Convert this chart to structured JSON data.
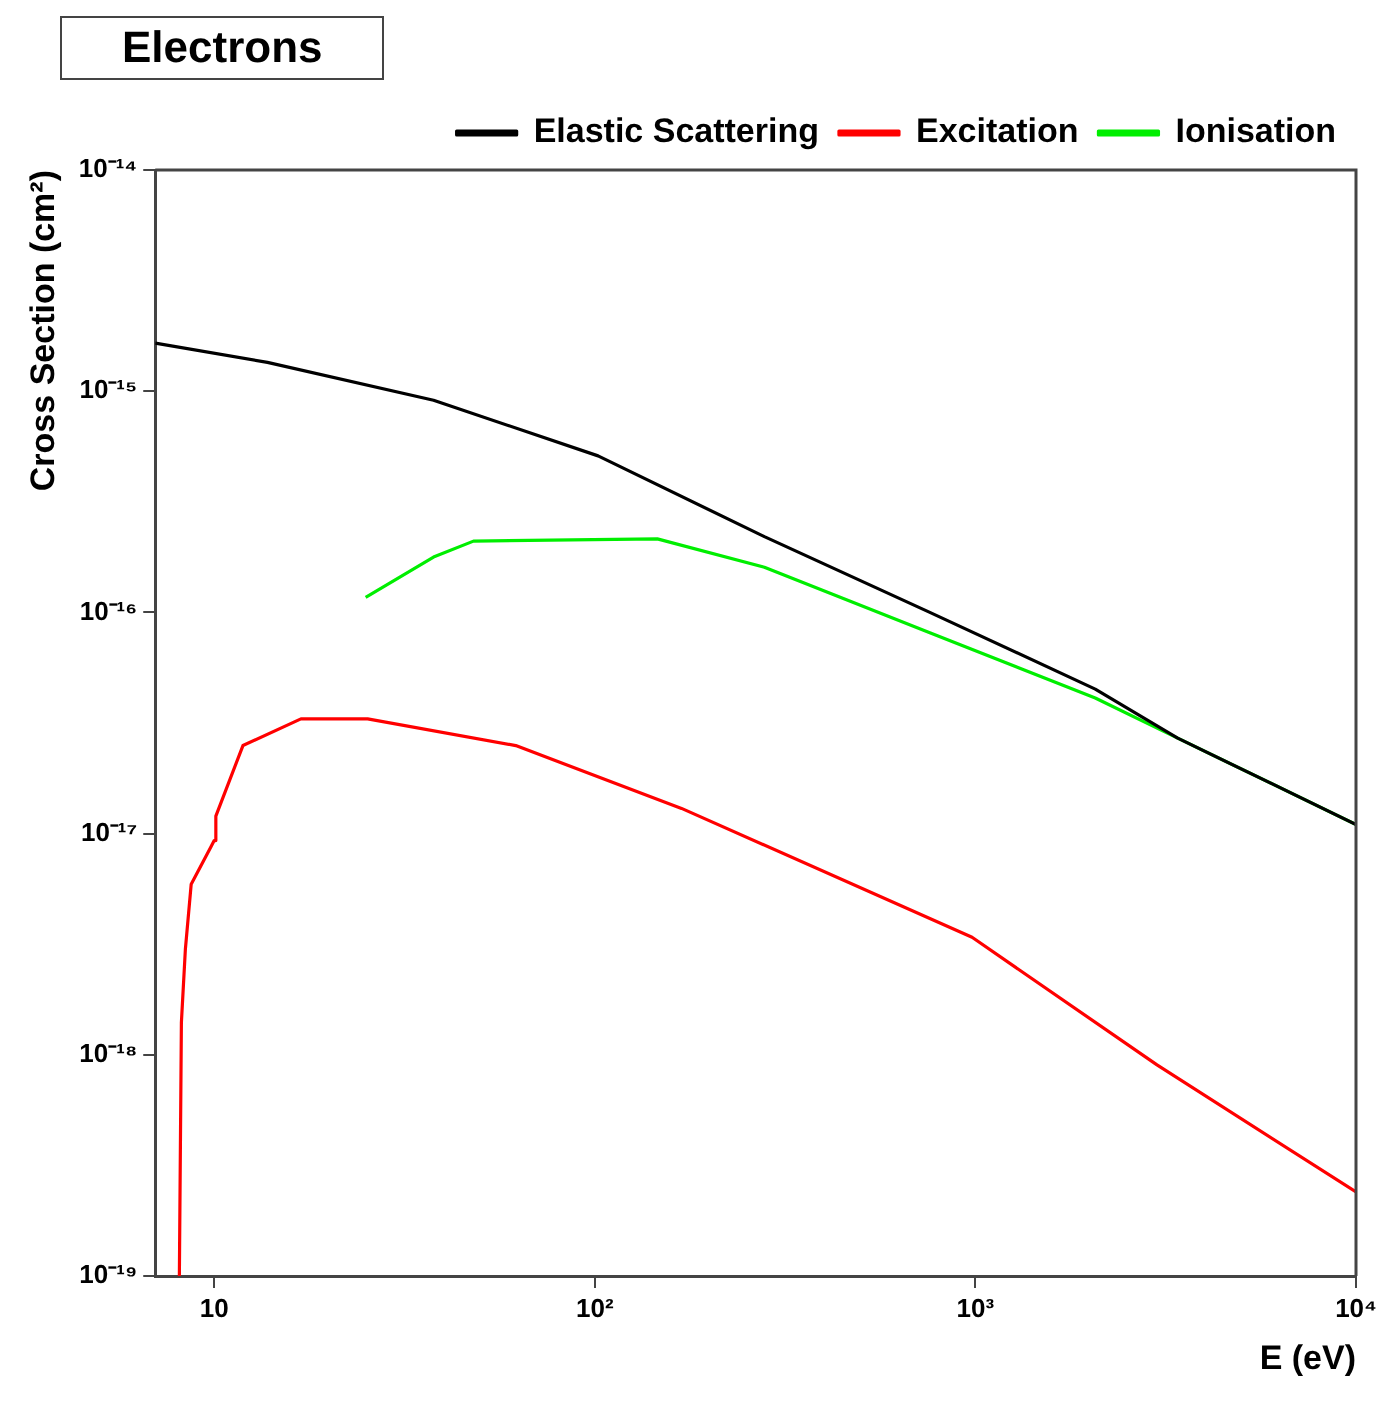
{
  "chart_data": {
    "type": "line",
    "title": "Electrons",
    "xlabel": "E (eV)",
    "ylabel": "Cross Section (cm²)",
    "log": "xy",
    "grid": false,
    "legend": "top right",
    "marker": "none",
    "line_style": "solid",
    "xlim": [
      7,
      10000
    ],
    "ylim": [
      1e-19,
      1e-14
    ],
    "xticks": [
      {
        "value": 10,
        "label": "10"
      },
      {
        "value": 100,
        "label": "10²"
      },
      {
        "value": 1000,
        "label": "10³"
      },
      {
        "value": 10000,
        "label": "10⁴"
      }
    ],
    "yticks": [
      {
        "value": 1e-19,
        "label": "10⁻¹⁹"
      },
      {
        "value": 1e-18,
        "label": "10⁻¹⁸"
      },
      {
        "value": 1e-17,
        "label": "10⁻¹⁷"
      },
      {
        "value": 1e-16,
        "label": "10⁻¹⁶"
      },
      {
        "value": 1e-15,
        "label": "10⁻¹⁵"
      },
      {
        "value": 1e-14,
        "label": "10⁻¹⁴"
      }
    ],
    "series": [
      {
        "name": "Elastic Scattering",
        "color": "#000000",
        "x": [
          7,
          13.8,
          37.7,
          102,
          279,
          759,
          2065,
          3400,
          10000
        ],
        "values": [
          1.65e-15,
          1.35e-15,
          9.1e-16,
          5.1e-16,
          2.2e-16,
          1e-16,
          4.5e-17,
          2.7e-17,
          1.1e-17
        ]
      },
      {
        "name": "Excitation",
        "color": "#ff0000",
        "x": [
          8.1,
          8.2,
          8.4,
          8.7,
          9.8,
          10,
          10.1,
          11.9,
          16.9,
          25.3,
          62,
          169,
          980,
          3000,
          10000
        ],
        "values": [
          1e-19,
          1.4e-18,
          3e-18,
          5.9e-18,
          8.7e-18,
          9.3e-18,
          1.2e-17,
          2.5e-17,
          3.3e-17,
          3.3e-17,
          2.5e-17,
          1.3e-17,
          3.4e-18,
          9e-19,
          2.4e-19
        ]
      },
      {
        "name": "Ionisation",
        "color": "#00ee00",
        "x": [
          25,
          37.7,
          48,
          146,
          279,
          759,
          2065,
          3400,
          10000
        ],
        "values": [
          1.17e-16,
          1.78e-16,
          2.1e-16,
          2.15e-16,
          1.6e-16,
          8.1e-17,
          4.1e-17,
          2.7e-17,
          1.1e-17
        ]
      }
    ]
  }
}
